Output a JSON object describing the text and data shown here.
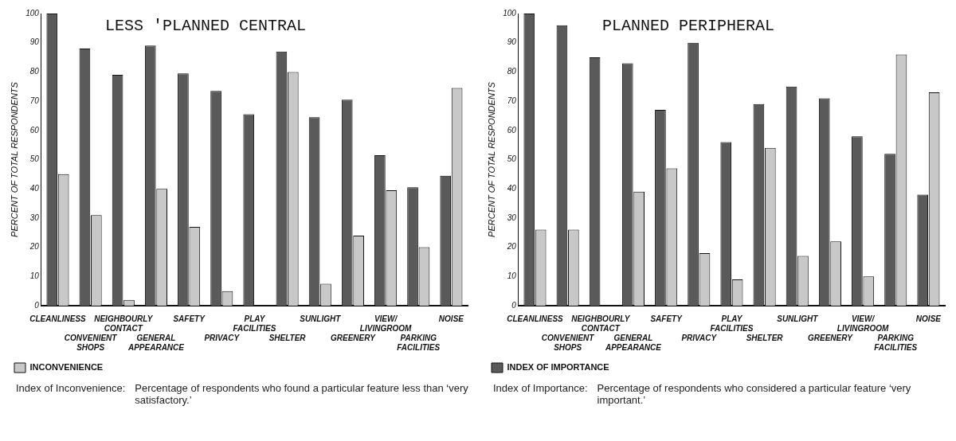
{
  "chart_data": [
    {
      "type": "bar",
      "title": "LESS 'PLANNED CENTRAL",
      "ylabel": "PERCENT OF TOTAL RESPONDENTS",
      "categories": [
        "CLEANLINESS",
        "CONVENIENT SHOPS",
        "NEIGHBOURLY CONTACT",
        "GENERAL APPEARANCE",
        "SAFETY",
        "PRIVACY",
        "PLAY FACILITIES",
        "SHELTER",
        "SUNLIGHT",
        "GREENERY",
        "VIEW/ LIVINGROOM",
        "PARKING FACILITIES",
        "NOISE"
      ],
      "series": [
        {
          "color": "#5a5a5a",
          "values": [
            100,
            88,
            79,
            89,
            79.5,
            73.5,
            65.5,
            87,
            64.5,
            70.5,
            51.5,
            40.5,
            44.5
          ]
        },
        {
          "name": "INCONVENIENCE",
          "color": "#c8c8c8",
          "values": [
            45,
            31,
            2,
            40,
            27,
            5,
            null,
            80,
            7.5,
            24,
            39.5,
            20,
            74.5
          ]
        }
      ],
      "ylim": [
        0,
        100
      ],
      "yticks": [
        0,
        10,
        20,
        30,
        40,
        50,
        60,
        70,
        80,
        90,
        100
      ],
      "grid": false,
      "legend": "bottom left",
      "annotations": [
        "Index of Inconvenience:",
        "Percentage of respondents who found a particular feature less than ‘very satisfactory.’"
      ]
    },
    {
      "type": "bar",
      "title": "PLANNED PERIPHERAL",
      "ylabel": "PERCENT OF TOTAL RESPONDENTS",
      "categories": [
        "CLEANLINESS",
        "CONVENIENT SHOPS",
        "NEIGHBOURLY CONTACT",
        "GENERAL APPEARANCE",
        "SAFETY",
        "PRIVACY",
        "PLAY FACILITIES",
        "SHELTER",
        "SUNLIGHT",
        "GREENERY",
        "VIEW/ LIVINGROOM",
        "PARKING FACILITIES",
        "NOISE"
      ],
      "series": [
        {
          "name": "INDEX OF IMPORTANCE",
          "color": "#5a5a5a",
          "values": [
            100,
            96,
            85,
            83,
            67,
            90,
            56,
            69,
            75,
            71,
            58,
            52,
            38
          ]
        },
        {
          "color": "#c8c8c8",
          "values": [
            26,
            26,
            null,
            39,
            47,
            18,
            9,
            54,
            17,
            22,
            10,
            86,
            73
          ]
        }
      ],
      "ylim": [
        0,
        100
      ],
      "yticks": [
        0,
        10,
        20,
        30,
        40,
        50,
        60,
        70,
        80,
        90,
        100
      ],
      "grid": false,
      "legend": "bottom left",
      "annotations": [
        "Index of Importance:",
        "Percentage of respondents who considered a particular feature ‘very important.’"
      ]
    }
  ]
}
